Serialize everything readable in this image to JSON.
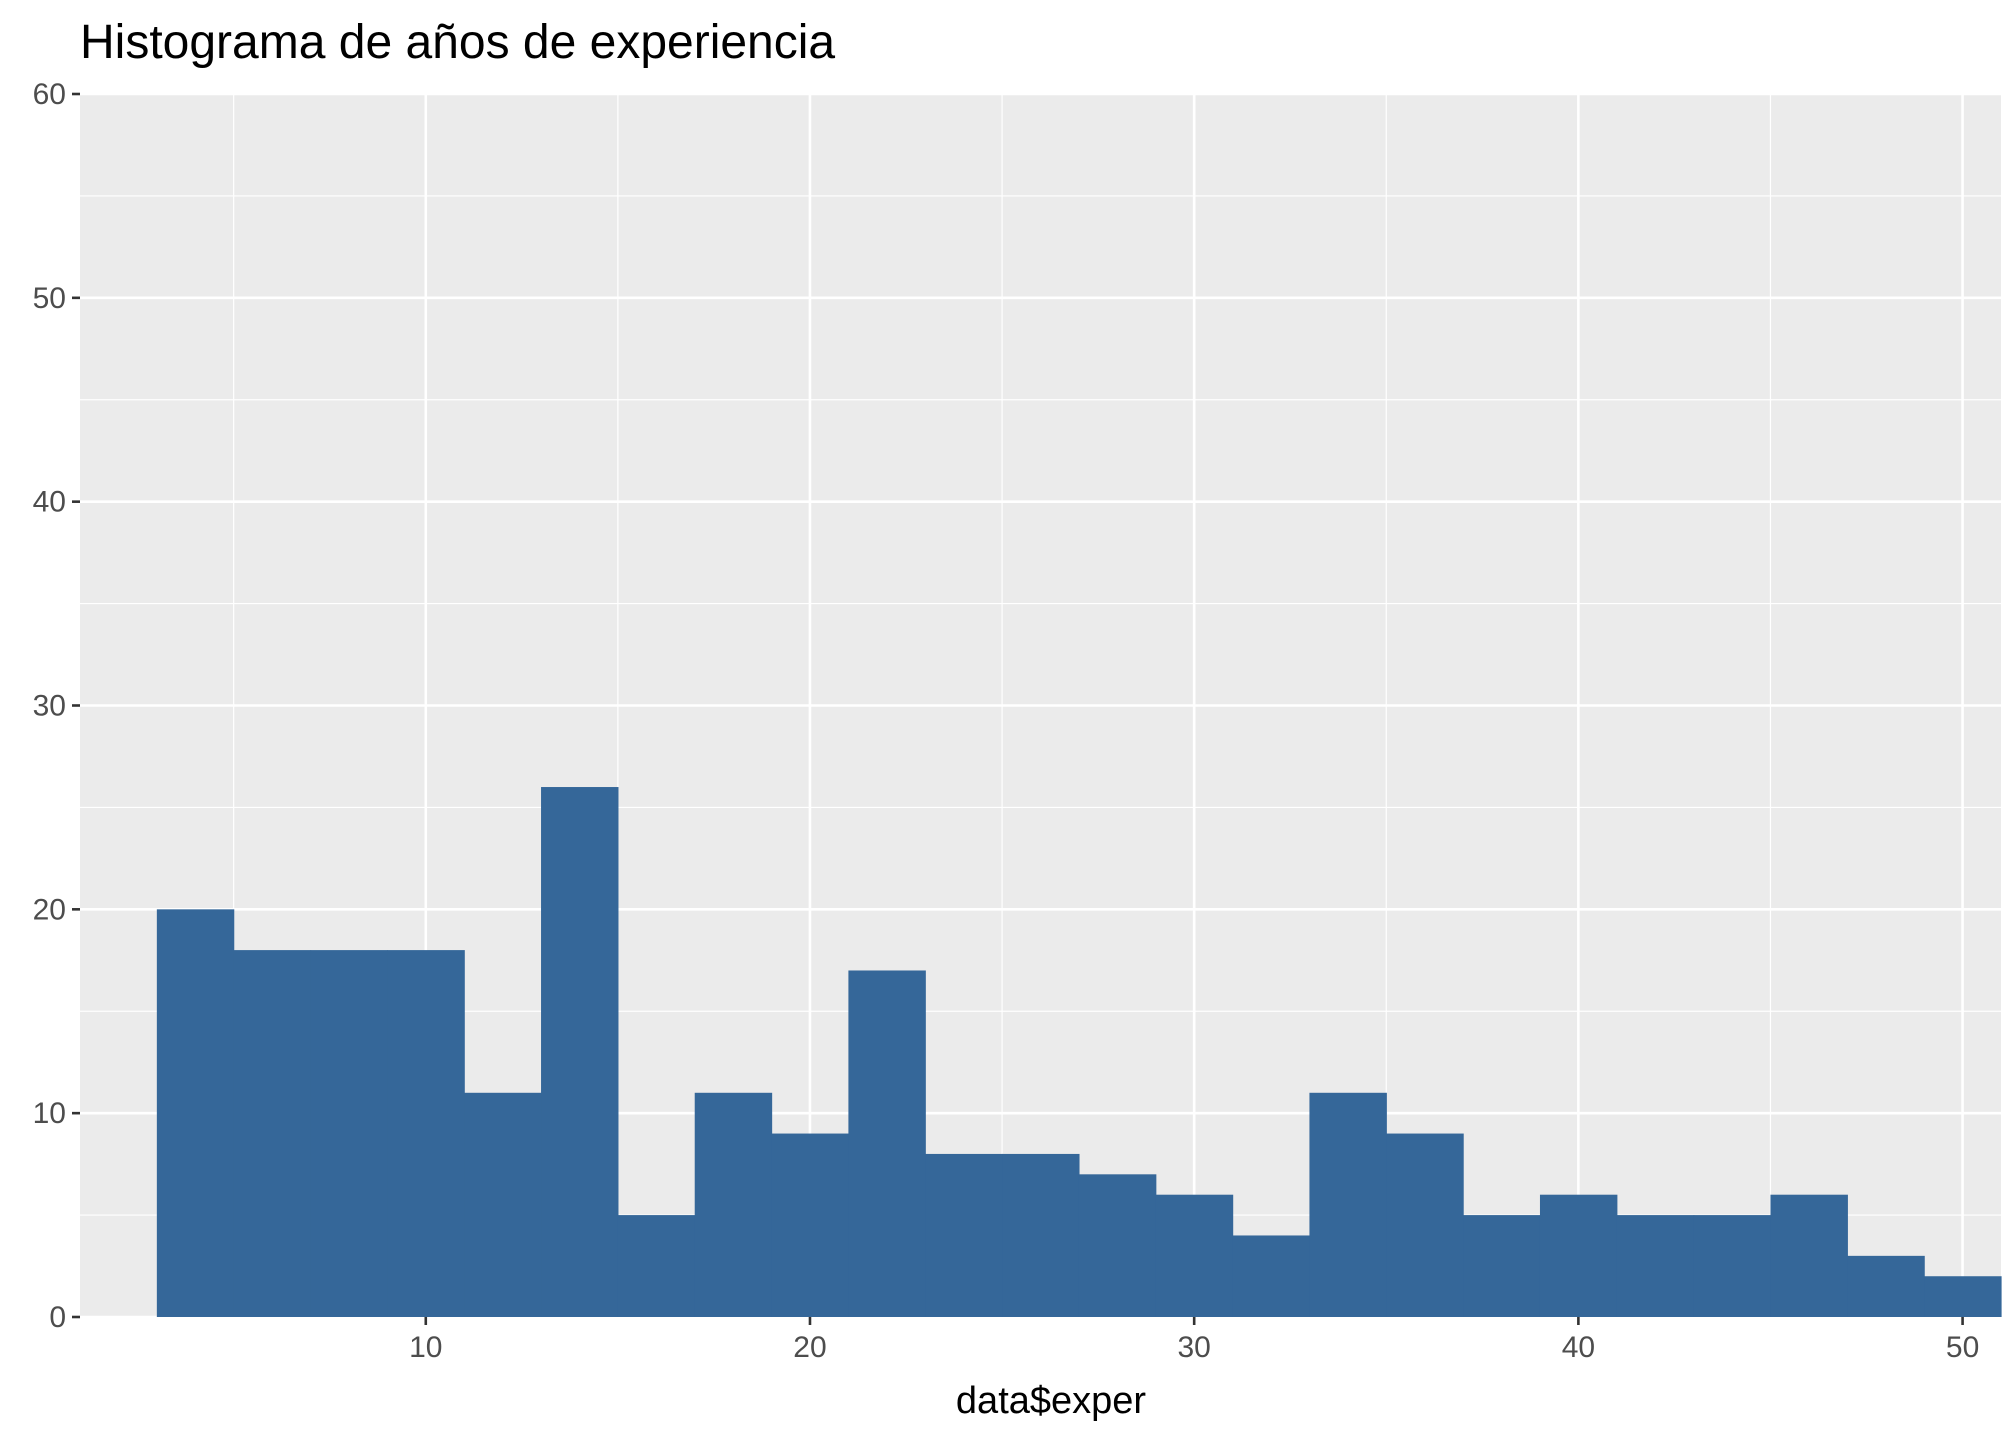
{
  "chart_data": {
    "type": "bar",
    "title": "Histograma de años de experiencia",
    "xlabel": "data$exper",
    "ylabel": "",
    "xlim": [
      1,
      51
    ],
    "ylim": [
      0,
      60
    ],
    "x_ticks": [
      10,
      20,
      30,
      40,
      50
    ],
    "y_ticks": [
      0,
      10,
      20,
      30,
      40,
      50,
      60
    ],
    "grid": true,
    "bin_width": 2,
    "bins": [
      {
        "start": 3,
        "end": 5,
        "count": 20
      },
      {
        "start": 5,
        "end": 7,
        "count": 18
      },
      {
        "start": 7,
        "end": 9,
        "count": 18
      },
      {
        "start": 9,
        "end": 11,
        "count": 18
      },
      {
        "start": 11,
        "end": 13,
        "count": 11
      },
      {
        "start": 13,
        "end": 15,
        "count": 26
      },
      {
        "start": 15,
        "end": 17,
        "count": 5
      },
      {
        "start": 17,
        "end": 19,
        "count": 11
      },
      {
        "start": 19,
        "end": 21,
        "count": 9
      },
      {
        "start": 21,
        "end": 23,
        "count": 17
      },
      {
        "start": 23,
        "end": 25,
        "count": 8
      },
      {
        "start": 25,
        "end": 27,
        "count": 8
      },
      {
        "start": 27,
        "end": 29,
        "count": 7
      },
      {
        "start": 29,
        "end": 31,
        "count": 6
      },
      {
        "start": 31,
        "end": 33,
        "count": 4
      },
      {
        "start": 33,
        "end": 35,
        "count": 11
      },
      {
        "start": 35,
        "end": 37,
        "count": 9
      },
      {
        "start": 37,
        "end": 39,
        "count": 5
      },
      {
        "start": 39,
        "end": 41,
        "count": 6
      },
      {
        "start": 41,
        "end": 43,
        "count": 5
      },
      {
        "start": 43,
        "end": 45,
        "count": 5
      },
      {
        "start": 45,
        "end": 47,
        "count": 6
      },
      {
        "start": 47,
        "end": 49,
        "count": 3
      },
      {
        "start": 49,
        "end": 51,
        "count": 2
      }
    ],
    "colors": {
      "bar": "#356799",
      "panel_background": "#ebebeb",
      "grid": "#ffffff"
    }
  }
}
